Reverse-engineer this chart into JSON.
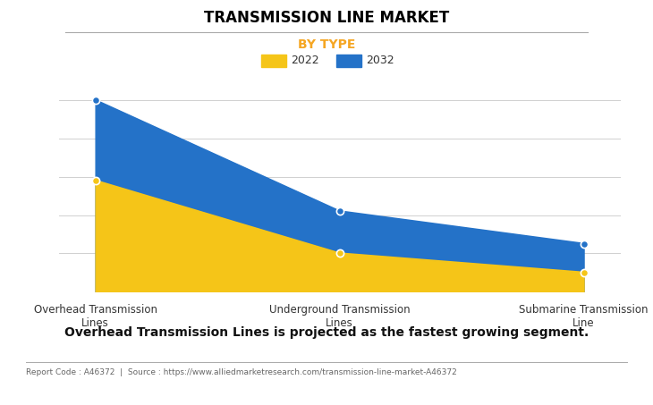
{
  "title": "TRANSMISSION LINE MARKET",
  "subtitle": "BY TYPE",
  "categories": [
    "Overhead Transmission\nLines",
    "Underground Transmission\nLines",
    "Submarine Transmission\nLine"
  ],
  "series_2022": [
    58,
    20,
    10
  ],
  "series_2032": [
    100,
    42,
    25
  ],
  "color_2022": "#F5C518",
  "color_2032": "#2472C8",
  "legend_labels": [
    "2022",
    "2032"
  ],
  "subtitle_color": "#F5A623",
  "title_color": "#000000",
  "background_color": "#ffffff",
  "footer_text": "Report Code : A46372  |  Source : https://www.alliedmarketresearch.com/transmission-line-market-A46372",
  "annotation_text": "Overhead Transmission Lines is projected as the fastest growing segment.",
  "ylim": [
    0,
    110
  ],
  "grid_color": "#d0d0d0"
}
